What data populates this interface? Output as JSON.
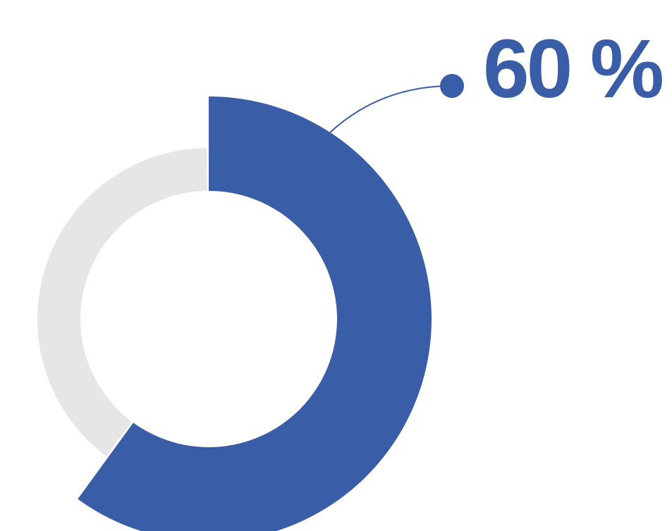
{
  "chart_data": {
    "type": "pie",
    "variant": "donut",
    "slices": [
      {
        "value": 60,
        "color": "#3a5da8",
        "highlighted": true
      },
      {
        "value": 40,
        "color": "#e6e6e6",
        "highlighted": false
      }
    ],
    "value_label": "60 %",
    "callout_color": "#3a5da8"
  }
}
